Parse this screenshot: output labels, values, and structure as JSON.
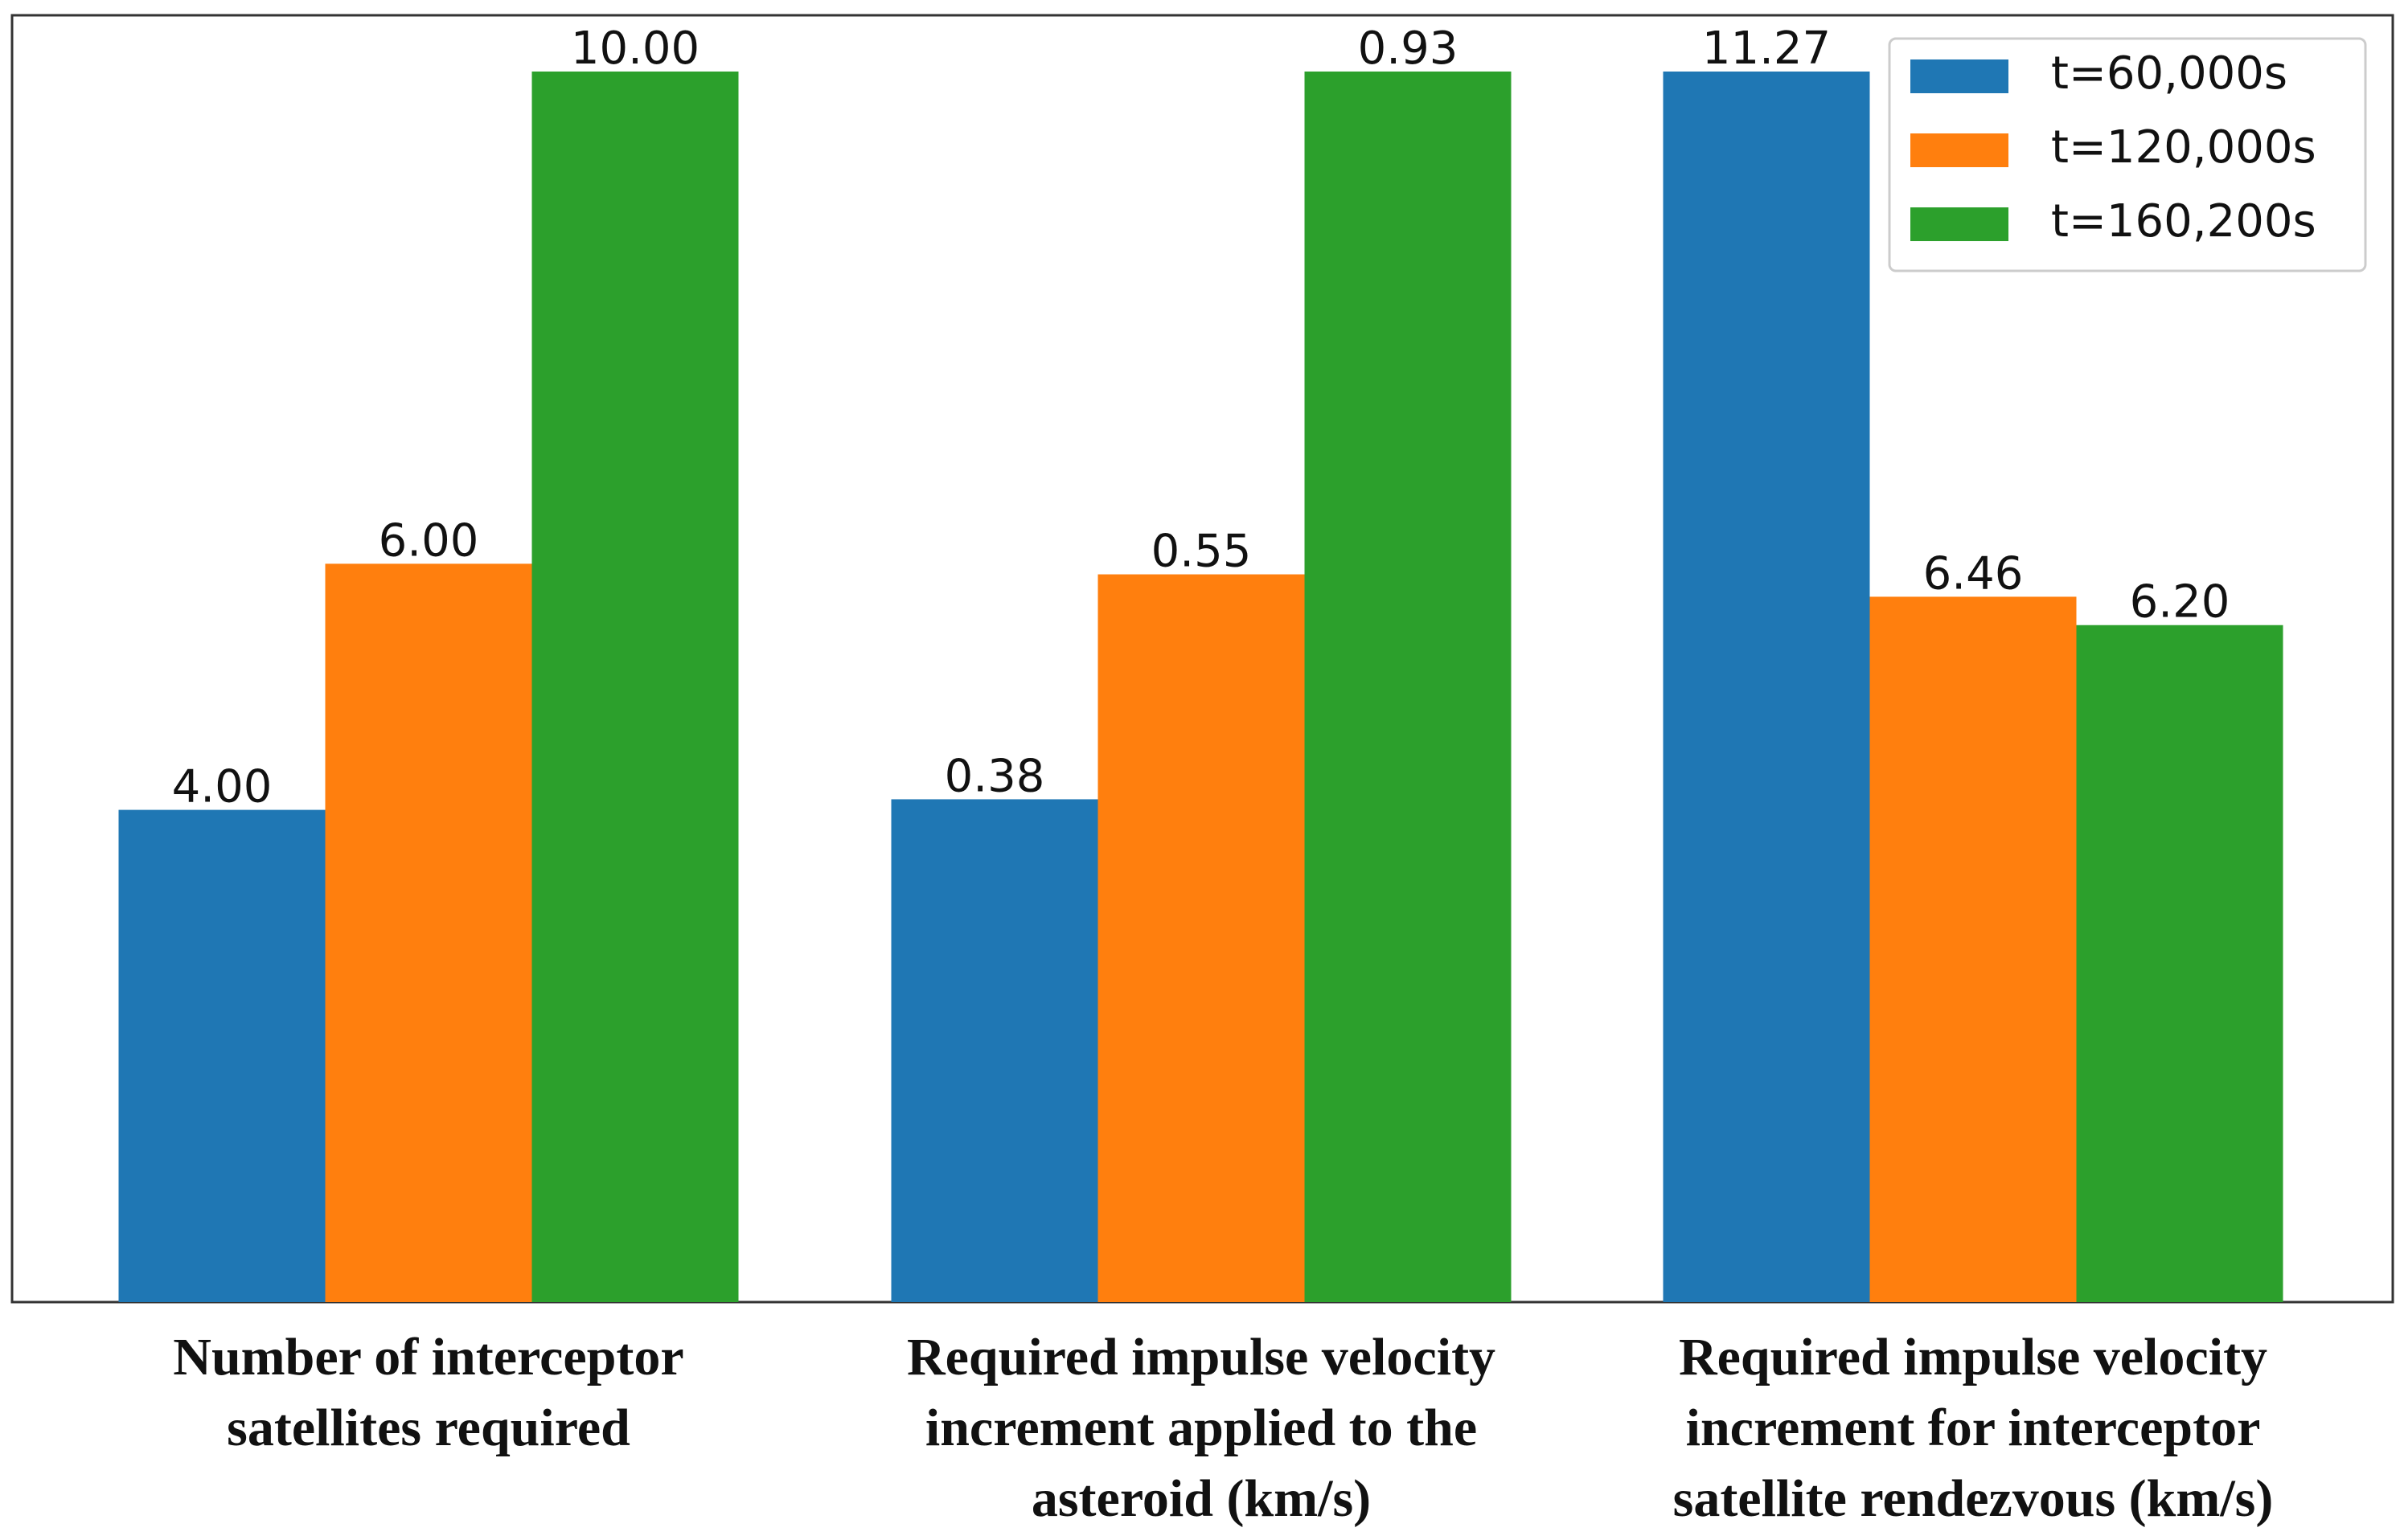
{
  "chart_data": {
    "type": "bar",
    "categories": [
      [
        "Number of interceptor",
        "satellites required"
      ],
      [
        "Required impulse velocity",
        "increment applied to the",
        "asteroid (km/s)"
      ],
      [
        "Required impulse velocity",
        "increment for interceptor",
        "satellite rendezvous (km/s)"
      ]
    ],
    "series": [
      {
        "name": "t=60,000s",
        "color": "#1f77b4",
        "values": [
          4,
          0.38,
          11.27
        ],
        "value_labels": [
          "4.00",
          "0.38",
          "11.27"
        ]
      },
      {
        "name": "t=120,000s",
        "color": "#ff7f0e",
        "values": [
          6,
          0.55,
          6.46
        ],
        "value_labels": [
          "6.00",
          "0.55",
          "6.46"
        ]
      },
      {
        "name": "t=160,200s",
        "color": "#2ca02c",
        "values": [
          10,
          0.93,
          6.2
        ],
        "value_labels": [
          "10.00",
          "0.93",
          "6.20"
        ]
      }
    ],
    "legend": "upper right"
  }
}
